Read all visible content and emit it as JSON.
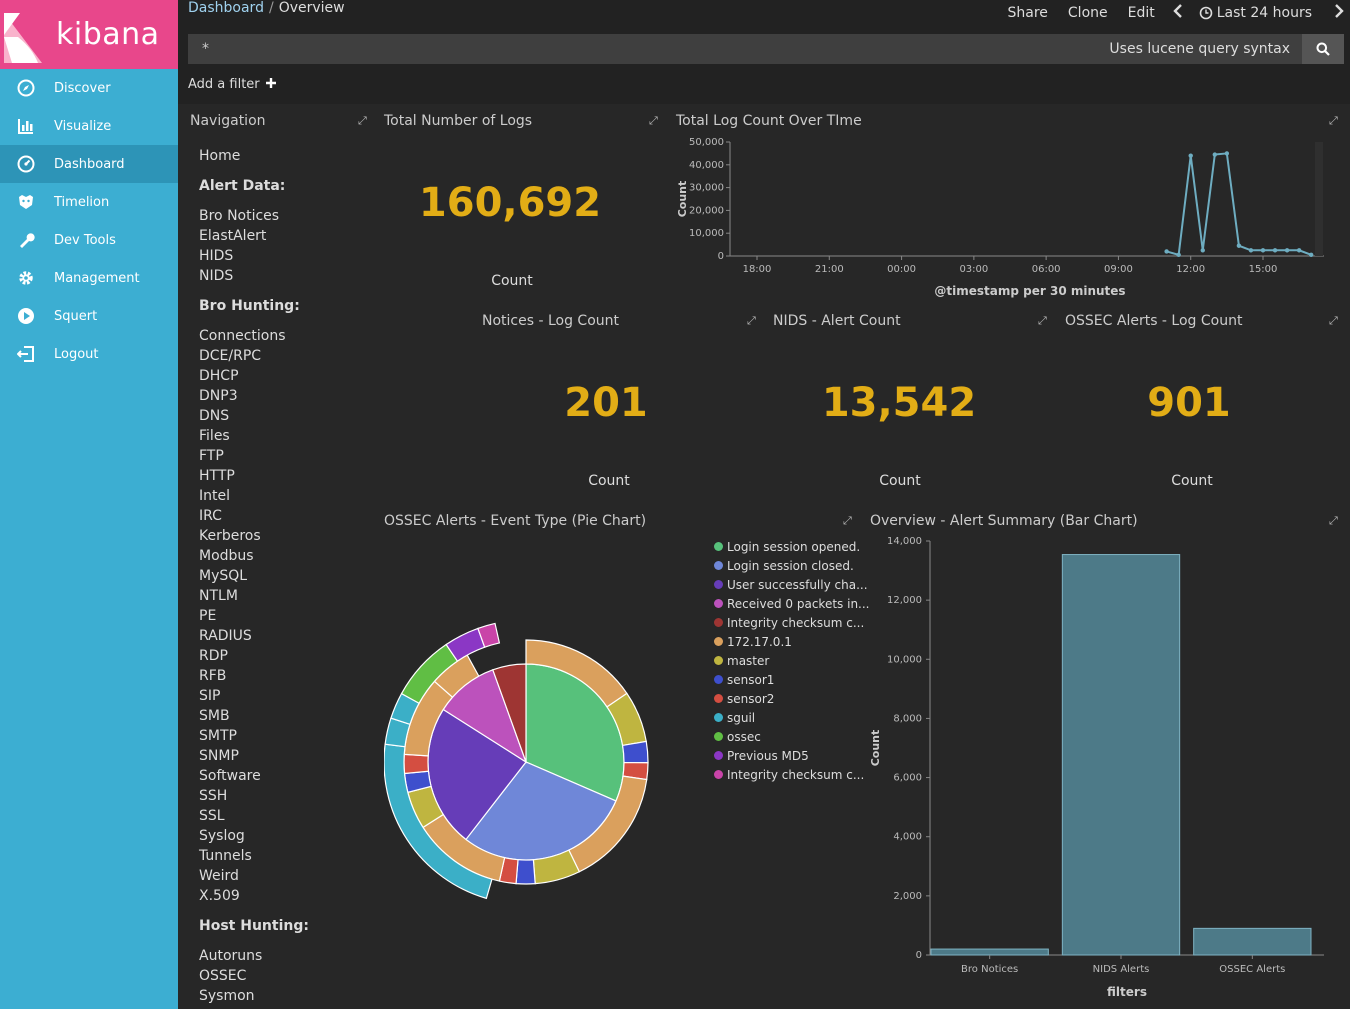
{
  "sidebar": {
    "brand": "kibana",
    "items": [
      {
        "label": "Discover",
        "icon": "compass-icon",
        "active": false
      },
      {
        "label": "Visualize",
        "icon": "bar-chart-icon",
        "active": false
      },
      {
        "label": "Dashboard",
        "icon": "dashboard-icon",
        "active": true
      },
      {
        "label": "Timelion",
        "icon": "timelion-icon",
        "active": false
      },
      {
        "label": "Dev Tools",
        "icon": "wrench-icon",
        "active": false
      },
      {
        "label": "Management",
        "icon": "gear-icon",
        "active": false
      },
      {
        "label": "Squert",
        "icon": "play-icon",
        "active": false
      },
      {
        "label": "Logout",
        "icon": "logout-icon",
        "active": false
      }
    ]
  },
  "header": {
    "breadcrumb_root": "Dashboard",
    "breadcrumb_separator": "/",
    "breadcrumb_current": "Overview",
    "actions": {
      "share": "Share",
      "clone": "Clone",
      "edit": "Edit",
      "time_range": "Last 24 hours"
    },
    "query_value": "*",
    "query_hint": "Uses lucene query syntax",
    "add_filter": "Add a filter"
  },
  "navigation_panel": {
    "title": "Navigation",
    "home": "Home",
    "alert_header": "Alert Data:",
    "alert_links": [
      "Bro Notices",
      "ElastAlert",
      "HIDS",
      "NIDS"
    ],
    "bro_header": "Bro Hunting:",
    "bro_links": [
      "Connections",
      "DCE/RPC",
      "DHCP",
      "DNP3",
      "DNS",
      "Files",
      "FTP",
      "HTTP",
      "Intel",
      "IRC",
      "Kerberos",
      "Modbus",
      "MySQL",
      "NTLM",
      "PE",
      "RADIUS",
      "RDP",
      "RFB",
      "SIP",
      "SMB",
      "SMTP",
      "SNMP",
      "Software",
      "SSH",
      "SSL",
      "Syslog",
      "Tunnels",
      "Weird",
      "X.509"
    ],
    "host_header": "Host Hunting:",
    "host_links": [
      "Autoruns",
      "OSSEC",
      "Sysmon"
    ]
  },
  "metrics": {
    "total_logs": {
      "title": "Total Number of Logs",
      "value": "160,692",
      "label": "Count"
    },
    "notices": {
      "title": "Notices - Log Count",
      "value": "201",
      "label": "Count"
    },
    "nids": {
      "title": "NIDS - Alert Count",
      "value": "13,542",
      "label": "Count"
    },
    "ossec": {
      "title": "OSSEC Alerts - Log Count",
      "value": "901",
      "label": "Count"
    }
  },
  "colors": {
    "metric": "#e2ad16",
    "sidebar": "#3caed2",
    "logo": "#e8478b",
    "line": "#6eadc1",
    "bar": "#4d7a88"
  },
  "chart_data": [
    {
      "type": "line",
      "title": "Total Log Count Over TIme",
      "xlabel": "@timestamp per 30 minutes",
      "ylabel": "Count",
      "ylim": [
        0,
        50000
      ],
      "yticks": [
        "0",
        "10,000",
        "20,000",
        "30,000",
        "40,000",
        "50,000"
      ],
      "xticks": [
        "18:00",
        "21:00",
        "00:00",
        "03:00",
        "06:00",
        "09:00",
        "12:00",
        "15:00"
      ],
      "x_hours": [
        11.0,
        11.5,
        12.0,
        12.5,
        13.0,
        13.5,
        14.0,
        14.5,
        15.0,
        15.5,
        16.0,
        16.5,
        17.0
      ],
      "values": [
        2000,
        500,
        44000,
        2500,
        44500,
        45000,
        4500,
        2500,
        2500,
        2500,
        2500,
        2500,
        500
      ]
    },
    {
      "type": "pie",
      "title": "OSSEC Alerts - Event Type (Pie Chart)",
      "legend": [
        {
          "label": "Login session opened.",
          "color": "#57c17b"
        },
        {
          "label": "Login session closed.",
          "color": "#6f87d8"
        },
        {
          "label": "User successfully cha...",
          "color": "#663db8"
        },
        {
          "label": "Received 0 packets in...",
          "color": "#bc52bc"
        },
        {
          "label": "Integrity checksum c...",
          "color": "#9e3533"
        },
        {
          "label": "172.17.0.1",
          "color": "#daa05d"
        },
        {
          "label": "master",
          "color": "#bfb540"
        },
        {
          "label": "sensor1",
          "color": "#3e4fcd"
        },
        {
          "label": "sensor2",
          "color": "#d44e41"
        },
        {
          "label": "sguil",
          "color": "#3bafc7"
        },
        {
          "label": "ossec",
          "color": "#60be44"
        },
        {
          "label": "Previous MD5",
          "color": "#8b37c5"
        },
        {
          "label": "Integrity checksum c...",
          "color": "#c944a8"
        }
      ],
      "inner": [
        {
          "label": "Login session opened.",
          "value": 0.315
        },
        {
          "label": "Login session closed.",
          "value": 0.29
        },
        {
          "label": "User successfully cha...",
          "value": 0.235
        },
        {
          "label": "Received 0 packets in...",
          "value": 0.105
        },
        {
          "label": "Integrity checksum c...",
          "value": 0.055
        }
      ],
      "middle": [
        {
          "label": "172.17.0.1",
          "value": 0.155
        },
        {
          "label": "master",
          "value": 0.068
        },
        {
          "label": "sensor1",
          "value": 0.028
        },
        {
          "label": "sensor2",
          "value": 0.022
        },
        {
          "label": "172.17.0.1",
          "value": 0.155
        },
        {
          "label": "master",
          "value": 0.06
        },
        {
          "label": "sensor1",
          "value": 0.025
        },
        {
          "label": "sensor2",
          "value": 0.022
        },
        {
          "label": "172.17.0.1",
          "value": 0.125
        },
        {
          "label": "master",
          "value": 0.05
        },
        {
          "label": "sensor1",
          "value": 0.025
        },
        {
          "label": "sensor2",
          "value": 0.025
        },
        {
          "label": "172.17.0.1",
          "value": 0.105
        },
        {
          "label": "172.17.0.1",
          "value": 0.055
        }
      ],
      "outer": [
        {
          "label": "sguil",
          "value": 0.225
        },
        {
          "label": "sguil",
          "value": 0.03
        },
        {
          "label": "sguil",
          "value": 0.03
        },
        {
          "label": "ossec",
          "value": 0.075
        },
        {
          "label": "Previous MD5",
          "value": 0.04
        },
        {
          "label": "Integrity checksum c...",
          "value": 0.02
        }
      ]
    },
    {
      "type": "bar",
      "title": "Overview - Alert Summary (Bar Chart)",
      "xlabel": "filters",
      "ylabel": "Count",
      "categories": [
        "Bro Notices",
        "NIDS Alerts",
        "OSSEC Alerts"
      ],
      "values": [
        201,
        13542,
        901
      ],
      "ylim": [
        0,
        14000
      ],
      "yticks": [
        "0",
        "2,000",
        "4,000",
        "6,000",
        "8,000",
        "10,000",
        "12,000",
        "14,000"
      ]
    }
  ]
}
